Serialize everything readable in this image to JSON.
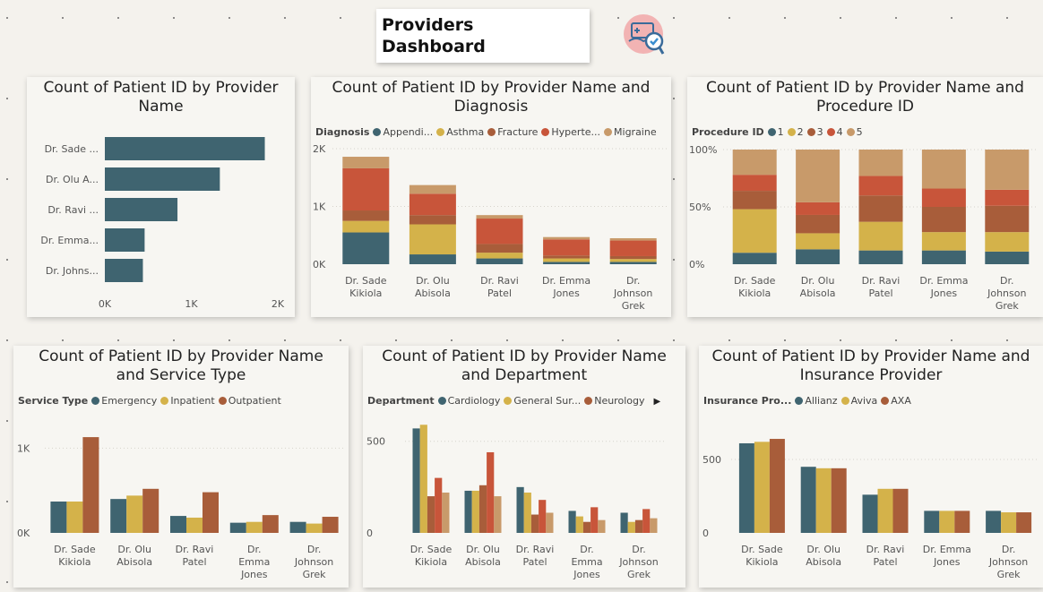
{
  "header": {
    "title_line1": "Providers",
    "title_line2": "Dashboard",
    "logo_icon": "medical-cart-check-icon"
  },
  "colors": {
    "teal": "#3f6470",
    "gold": "#d4b24a",
    "rust": "#a85d3a",
    "orange": "#c8553a",
    "tan": "#c89a6a",
    "grid": "#d8d5cf"
  },
  "chart_data": [
    {
      "id": "c1",
      "type": "bar",
      "orientation": "horizontal",
      "title": "Count of Patient ID by Provider Name",
      "categories": [
        "Dr. Sade ...",
        "Dr. Olu A...",
        "Dr. Ravi ...",
        "Dr. Emma...",
        "Dr. Johns..."
      ],
      "values": [
        1850,
        1330,
        840,
        460,
        440
      ],
      "xlim": [
        0,
        2000
      ],
      "xticks": [
        {
          "v": 0,
          "label": "0K"
        },
        {
          "v": 1000,
          "label": "1K"
        },
        {
          "v": 2000,
          "label": "2K"
        }
      ]
    },
    {
      "id": "c2",
      "type": "bar",
      "stacked": true,
      "title": "Count of Patient ID by Provider Name and Diagnosis",
      "legend_title": "Diagnosis",
      "categories": [
        [
          "Dr. Sade",
          "Kikiola"
        ],
        [
          "Dr. Olu",
          "Abisola"
        ],
        [
          "Dr. Ravi",
          "Patel"
        ],
        [
          "Dr. Emma",
          "Jones"
        ],
        [
          "Dr.",
          "Johnson",
          "Grek"
        ]
      ],
      "series": [
        {
          "name": "Appendi...",
          "color": "#3f6470",
          "values": [
            550,
            170,
            100,
            40,
            40
          ]
        },
        {
          "name": "Asthma",
          "color": "#d4b24a",
          "values": [
            200,
            520,
            100,
            60,
            50
          ]
        },
        {
          "name": "Fracture",
          "color": "#a85d3a",
          "values": [
            180,
            160,
            150,
            50,
            50
          ]
        },
        {
          "name": "Hyperte...",
          "color": "#c8553a",
          "values": [
            730,
            370,
            440,
            280,
            270
          ]
        },
        {
          "name": "Migraine",
          "color": "#c89a6a",
          "values": [
            200,
            150,
            60,
            40,
            40
          ]
        }
      ],
      "ylim": [
        0,
        2000
      ],
      "yticks": [
        {
          "v": 0,
          "label": "0K"
        },
        {
          "v": 1000,
          "label": "1K"
        },
        {
          "v": 2000,
          "label": "2K"
        }
      ]
    },
    {
      "id": "c3",
      "type": "bar",
      "stacked": true,
      "percent": true,
      "title": "Count of Patient ID by Provider Name and Procedure ID",
      "legend_title": "Procedure ID",
      "categories": [
        [
          "Dr. Sade",
          "Kikiola"
        ],
        [
          "Dr. Olu",
          "Abisola"
        ],
        [
          "Dr. Ravi",
          "Patel"
        ],
        [
          "Dr. Emma",
          "Jones"
        ],
        [
          "Dr.",
          "Johnson",
          "Grek"
        ]
      ],
      "series": [
        {
          "name": "1",
          "color": "#3f6470",
          "values": [
            10,
            13,
            12,
            12,
            11
          ]
        },
        {
          "name": "2",
          "color": "#d4b24a",
          "values": [
            38,
            14,
            25,
            16,
            17
          ]
        },
        {
          "name": "3",
          "color": "#a85d3a",
          "values": [
            16,
            16,
            23,
            22,
            23
          ]
        },
        {
          "name": "4",
          "color": "#c8553a",
          "values": [
            14,
            11,
            17,
            16,
            14
          ]
        },
        {
          "name": "5",
          "color": "#c89a6a",
          "values": [
            22,
            46,
            23,
            34,
            35
          ]
        }
      ],
      "ylim": [
        0,
        100
      ],
      "yticks": [
        {
          "v": 0,
          "label": "0%"
        },
        {
          "v": 50,
          "label": "50%"
        },
        {
          "v": 100,
          "label": "100%"
        }
      ]
    },
    {
      "id": "c4",
      "type": "bar",
      "grouped": true,
      "title": "Count of Patient ID by Provider Name and Service Type",
      "legend_title": "Service Type",
      "categories": [
        [
          "Dr. Sade",
          "Kikiola"
        ],
        [
          "Dr. Olu",
          "Abisola"
        ],
        [
          "Dr. Ravi",
          "Patel"
        ],
        [
          "Dr.",
          "Emma",
          "Jones"
        ],
        [
          "Dr.",
          "Johnson",
          "Grek"
        ]
      ],
      "series": [
        {
          "name": "Emergency",
          "color": "#3f6470",
          "values": [
            370,
            400,
            200,
            120,
            130
          ]
        },
        {
          "name": "Inpatient",
          "color": "#d4b24a",
          "values": [
            370,
            440,
            180,
            130,
            110
          ]
        },
        {
          "name": "Outpatient",
          "color": "#a85d3a",
          "values": [
            1130,
            520,
            480,
            210,
            190
          ]
        }
      ],
      "ylim": [
        0,
        1300
      ],
      "yticks": [
        {
          "v": 0,
          "label": "0K"
        },
        {
          "v": 1000,
          "label": "1K"
        }
      ]
    },
    {
      "id": "c5",
      "type": "bar",
      "grouped": true,
      "title": "Count of Patient ID by Provider Name and Department",
      "legend_title": "Department",
      "categories": [
        [
          "Dr. Sade",
          "Kikiola"
        ],
        [
          "Dr. Olu",
          "Abisola"
        ],
        [
          "Dr. Ravi",
          "Patel"
        ],
        [
          "Dr.",
          "Emma",
          "Jones"
        ],
        [
          "Dr.",
          "Johnson",
          "Grek"
        ]
      ],
      "series": [
        {
          "name": "Cardiology",
          "color": "#3f6470",
          "values": [
            570,
            230,
            250,
            120,
            110
          ]
        },
        {
          "name": "General Sur...",
          "color": "#d4b24a",
          "values": [
            590,
            230,
            220,
            90,
            60
          ]
        },
        {
          "name": "Neurology",
          "color": "#a85d3a",
          "values": [
            200,
            260,
            100,
            60,
            70
          ]
        },
        {
          "name": "",
          "color": "#c8553a",
          "values": [
            300,
            440,
            180,
            140,
            130
          ]
        },
        {
          "name": "",
          "color": "#c89a6a",
          "values": [
            220,
            200,
            110,
            70,
            80
          ]
        }
      ],
      "ylim": [
        0,
        650
      ],
      "yticks": [
        {
          "v": 0,
          "label": "0"
        },
        {
          "v": 500,
          "label": "500"
        }
      ]
    },
    {
      "id": "c6",
      "type": "bar",
      "grouped": true,
      "title": "Count of Patient ID by Provider Name and Insurance Provider",
      "legend_title": "Insurance Pro...",
      "categories": [
        [
          "Dr. Sade",
          "Kikiola"
        ],
        [
          "Dr. Olu",
          "Abisola"
        ],
        [
          "Dr. Ravi",
          "Patel"
        ],
        [
          "Dr. Emma",
          "Jones"
        ],
        [
          "Dr.",
          "Johnson",
          "Grek"
        ]
      ],
      "series": [
        {
          "name": "Allianz",
          "color": "#3f6470",
          "values": [
            610,
            450,
            260,
            150,
            150
          ]
        },
        {
          "name": "Aviva",
          "color": "#d4b24a",
          "values": [
            620,
            440,
            300,
            150,
            140
          ]
        },
        {
          "name": "AXA",
          "color": "#a85d3a",
          "values": [
            640,
            440,
            300,
            150,
            140
          ]
        }
      ],
      "ylim": [
        0,
        750
      ],
      "yticks": [
        {
          "v": 0,
          "label": "0"
        },
        {
          "v": 500,
          "label": "500"
        }
      ]
    }
  ],
  "panels": {
    "c1": {
      "title_l1": "Count of Patient ID by Provider",
      "title_l2": "Name"
    },
    "c2": {
      "title_l1": "Count of Patient ID by Provider Name and",
      "title_l2": "Diagnosis"
    },
    "c3": {
      "title_l1": "Count of Patient ID by Provider Name and",
      "title_l2": "Procedure ID"
    },
    "c4": {
      "title_l1": "Count of Patient ID by Provider Name",
      "title_l2": "and Service Type"
    },
    "c5": {
      "title_l1": "Count of Patient ID by Provider Name",
      "title_l2": "and Department"
    },
    "c6": {
      "title_l1": "Count of Patient ID by Provider Name and",
      "title_l2": "Insurance Provider"
    }
  }
}
